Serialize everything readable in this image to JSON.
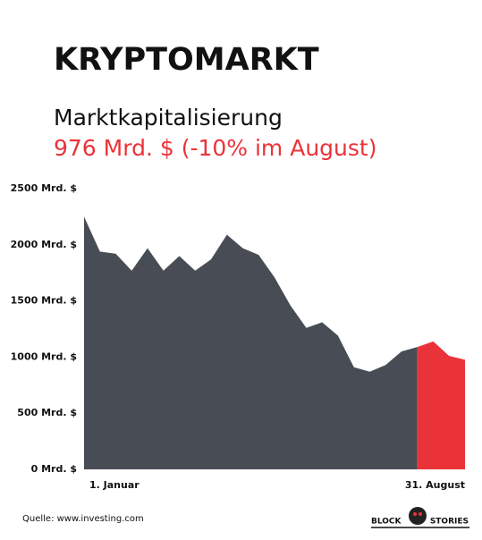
{
  "chart_data": {
    "type": "area",
    "title": "KRYPTOMARKT",
    "subtitle": "Marktkapitalisierung",
    "highlight": "976 Mrd. $ (-10% im August)",
    "source": "Quelle: www.investing.com",
    "logo": [
      "BLOCK",
      "STORIES"
    ],
    "categories": [
      "1. Januar",
      null,
      null,
      null,
      null,
      null,
      null,
      null,
      null,
      null,
      null,
      null,
      null,
      null,
      null,
      null,
      null,
      null,
      null,
      null,
      null,
      null,
      null,
      null,
      "31. August"
    ],
    "series": [
      {
        "color": "#474c55",
        "values": [
          2250,
          1940,
          1920,
          1770,
          1970,
          1770,
          1900,
          1770,
          1870,
          2090,
          1970,
          1910,
          1710,
          1460,
          1260,
          1310,
          1190,
          910,
          870,
          930,
          1050,
          1090,
          null,
          null,
          null
        ]
      },
      {
        "color": "#ea3339",
        "values": [
          null,
          null,
          null,
          null,
          null,
          null,
          null,
          null,
          null,
          null,
          null,
          null,
          null,
          null,
          null,
          null,
          null,
          null,
          null,
          null,
          null,
          1090,
          1140,
          1010,
          976
        ]
      }
    ],
    "ylim": [
      0,
      2500
    ],
    "yticks": [
      {
        "value": 0,
        "label": "0 Mrd. $"
      },
      {
        "value": 500,
        "label": "500 Mrd. $"
      },
      {
        "value": 1000,
        "label": "1000 Mrd. $"
      },
      {
        "value": 1500,
        "label": "1500 Mrd. $"
      },
      {
        "value": 2000,
        "label": "2000 Mrd. $"
      },
      {
        "value": 2500,
        "label": "2500 Mrd. $"
      }
    ]
  }
}
